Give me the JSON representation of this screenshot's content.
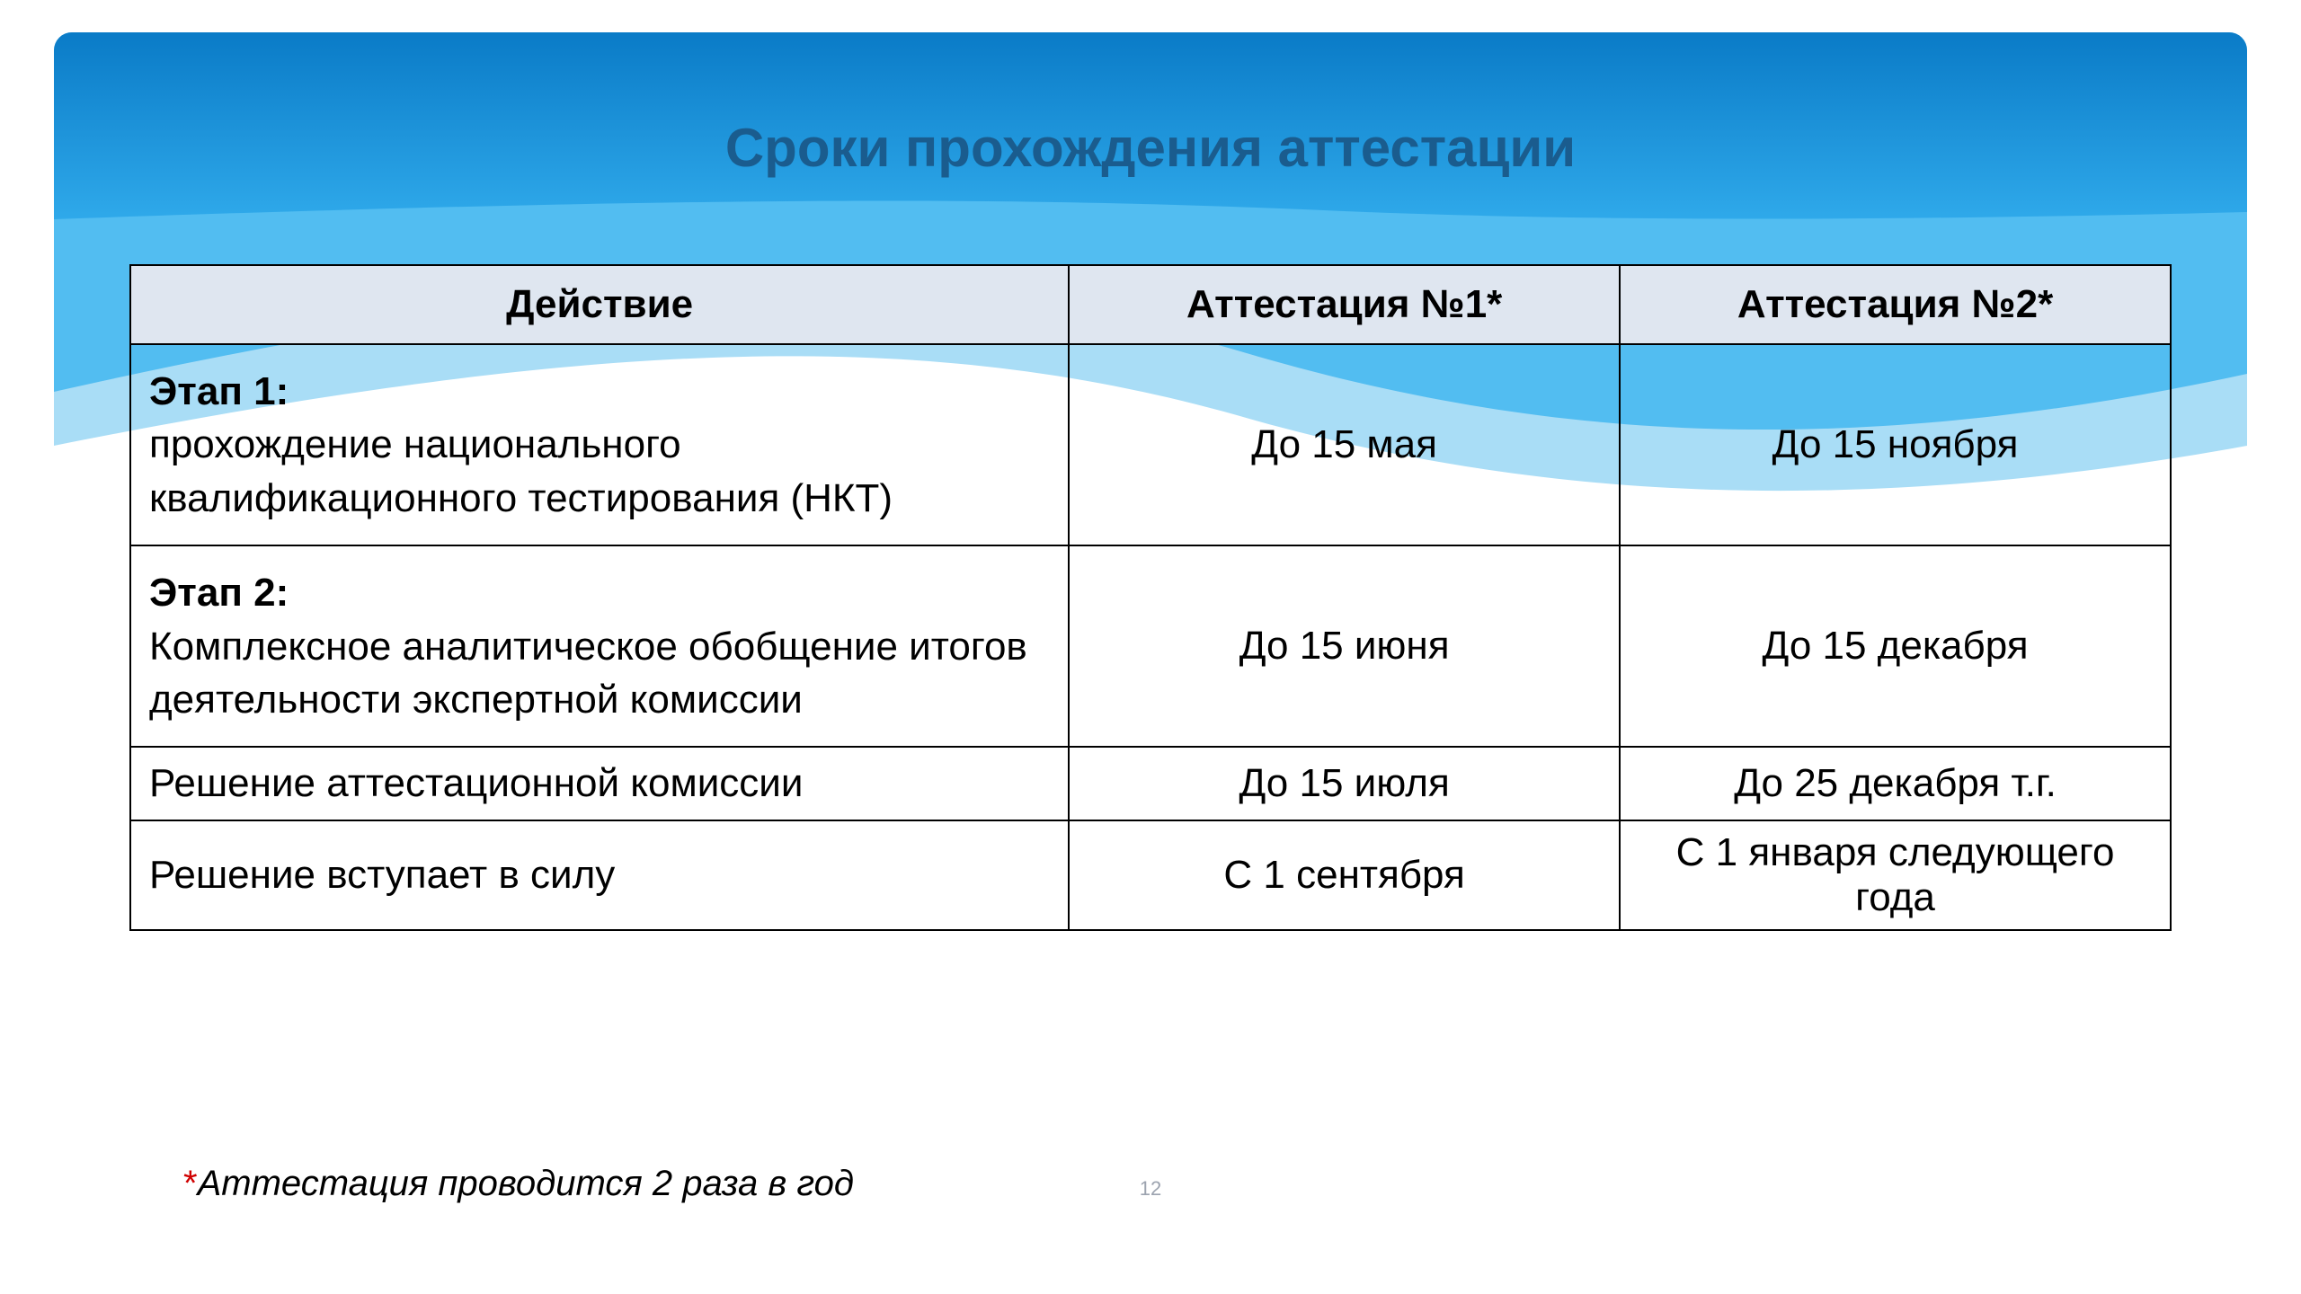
{
  "slide": {
    "title": "Сроки прохождения аттестации",
    "page_number": "12",
    "header_colors": {
      "top": "#0d8ee0",
      "mid": "#3fb4ee",
      "light": "#a9ddf6"
    },
    "table": {
      "header_bg": "#dfe6f0",
      "border_color": "#000000",
      "columns": [
        {
          "label": "Действие",
          "width_pct": 46,
          "align": "center"
        },
        {
          "label": "Аттестация №1*",
          "width_pct": 27,
          "align": "center"
        },
        {
          "label": "Аттестация №2*",
          "width_pct": 27,
          "align": "center"
        }
      ],
      "rows": [
        {
          "stage_label": "Этап 1:",
          "stage_desc": "прохождение национального квалификационного тестирования (НКТ)",
          "att1": "До 15 мая",
          "att2": "До 15 ноября",
          "size": "big"
        },
        {
          "stage_label": "Этап 2:",
          "stage_desc": "Комплексное аналитическое обобщение итогов деятельности экспертной комиссии",
          "att1": "До 15 июня",
          "att2": "До 15 декабря",
          "size": "big"
        },
        {
          "stage_label": "",
          "stage_desc": "Решение аттестационной комиссии",
          "att1": "До 15 июля",
          "att2": "До 25 декабря т.г.",
          "size": "small"
        },
        {
          "stage_label": "",
          "stage_desc": "Решение вступает в силу",
          "att1": "С 1 сентября",
          "att2": "С 1 января следующего года",
          "size": "small"
        }
      ]
    },
    "footnote": {
      "asterisk": "*",
      "text": "Аттестация проводится 2 раза в год"
    }
  }
}
